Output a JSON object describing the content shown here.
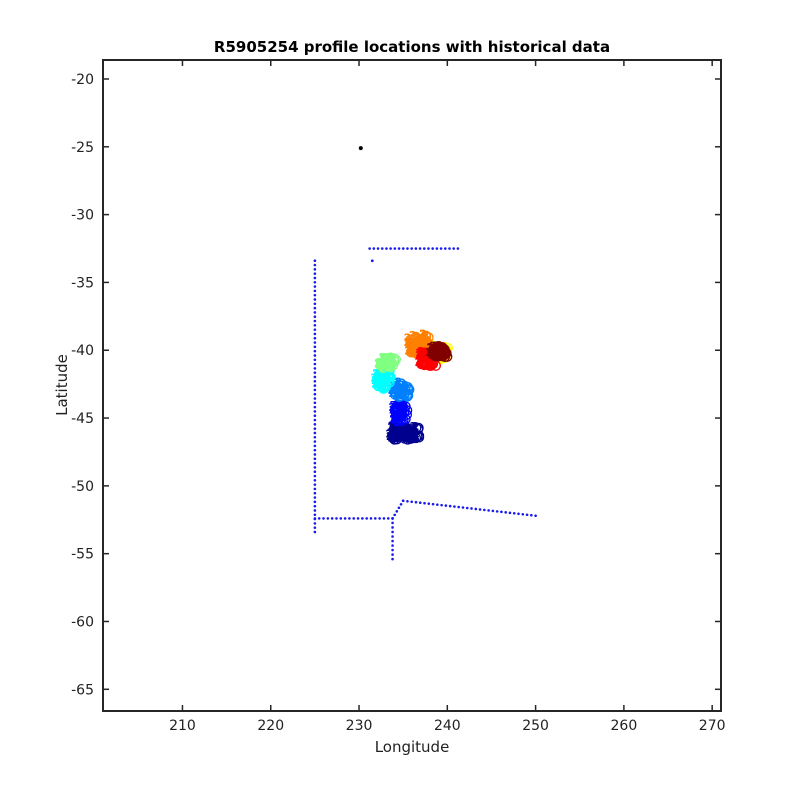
{
  "chart_data": {
    "type": "scatter",
    "title": "R5905254 profile locations with historical data",
    "xlabel": "Longitude",
    "ylabel": "Latitude",
    "xlim": [
      201,
      271
    ],
    "ylim": [
      -66.6,
      -18.6
    ],
    "xticks": [
      210,
      220,
      230,
      240,
      250,
      260,
      270
    ],
    "yticks": [
      -20,
      -25,
      -30,
      -35,
      -40,
      -45,
      -50,
      -55,
      -60,
      -65
    ],
    "grid": false,
    "legend": "none",
    "colors": {
      "axes": "#262626",
      "historical": "#1a1aee",
      "float_start": "#000000",
      "colormap": [
        "#00008f",
        "#0000ff",
        "#0080ff",
        "#00ffff",
        "#80ff80",
        "#ffff00",
        "#ff8000",
        "#ff0000",
        "#800000"
      ]
    },
    "series": [
      {
        "kind": "historical",
        "segments": [
          {
            "x": [
              225.0,
              225.0
            ],
            "y": [
              -33.4,
              -53.4
            ]
          },
          {
            "x": [
              225.0,
              233.8
            ],
            "y": [
              -52.4,
              -52.4
            ]
          },
          {
            "x": [
              233.8,
              233.8
            ],
            "y": [
              -52.4,
              -55.4
            ]
          },
          {
            "x": [
              233.8,
              235.0
            ],
            "y": [
              -52.4,
              -51.1
            ]
          },
          {
            "x": [
              235.0,
              250.0
            ],
            "y": [
              -51.1,
              -52.2
            ]
          },
          {
            "x": [
              231.2,
              241.2
            ],
            "y": [
              -32.5,
              -32.5
            ]
          }
        ],
        "points": [
          {
            "x": 231.5,
            "y": -33.4
          }
        ]
      },
      {
        "kind": "float_start",
        "points": [
          {
            "x": 230.2,
            "y": -25.1
          }
        ]
      },
      {
        "kind": "profiles",
        "symbol": "2",
        "clusters": [
          {
            "x": 235.0,
            "y": -46.0,
            "spread": [
              3.2,
              0.9
            ],
            "count": 60,
            "color_index": 0
          },
          {
            "x": 234.5,
            "y": -44.5,
            "spread": [
              1.5,
              1.2
            ],
            "count": 30,
            "color_index": 1
          },
          {
            "x": 234.5,
            "y": -42.8,
            "spread": [
              1.8,
              1.0
            ],
            "count": 35,
            "color_index": 2
          },
          {
            "x": 232.5,
            "y": -42.0,
            "spread": [
              1.6,
              1.4
            ],
            "count": 40,
            "color_index": 3
          },
          {
            "x": 233.0,
            "y": -40.8,
            "spread": [
              1.8,
              0.7
            ],
            "count": 30,
            "color_index": 4
          },
          {
            "x": 238.5,
            "y": -40.0,
            "spread": [
              2.6,
              1.0
            ],
            "count": 40,
            "color_index": 5
          },
          {
            "x": 236.5,
            "y": -39.5,
            "spread": [
              2.2,
              1.5
            ],
            "count": 45,
            "color_index": 6
          },
          {
            "x": 237.5,
            "y": -40.5,
            "spread": [
              1.8,
              1.0
            ],
            "count": 35,
            "color_index": 7
          },
          {
            "x": 238.8,
            "y": -40.0,
            "spread": [
              1.8,
              0.8
            ],
            "count": 35,
            "color_index": 8
          }
        ]
      }
    ]
  }
}
